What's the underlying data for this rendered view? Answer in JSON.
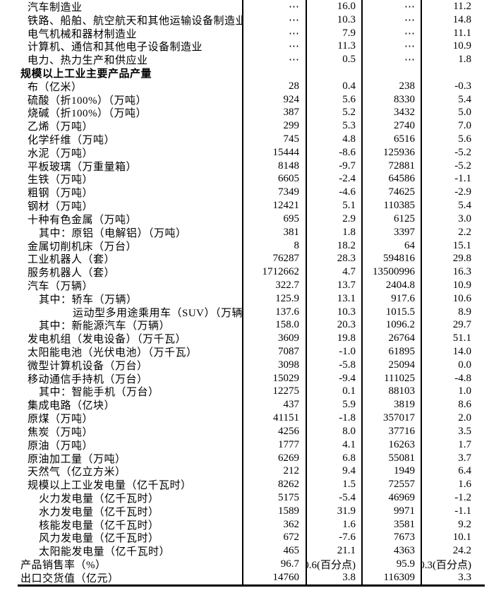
{
  "table": {
    "rows": [
      {
        "label": "汽车制造业",
        "indent": 1,
        "bold": false,
        "v1": "⋯",
        "v2": "16.0",
        "v3": "⋯",
        "v4": "11.2"
      },
      {
        "label": "铁路、船舶、航空航天和其他运输设备制造业",
        "indent": 1,
        "bold": false,
        "v1": "⋯",
        "v2": "10.3",
        "v3": "⋯",
        "v4": "14.8"
      },
      {
        "label": "电气机械和器材制造业",
        "indent": 1,
        "bold": false,
        "v1": "⋯",
        "v2": "7.9",
        "v3": "⋯",
        "v4": "11.1"
      },
      {
        "label": "计算机、通信和其他电子设备制造业",
        "indent": 1,
        "bold": false,
        "v1": "⋯",
        "v2": "11.3",
        "v3": "⋯",
        "v4": "10.9"
      },
      {
        "label": "电力、热力生产和供应业",
        "indent": 1,
        "bold": false,
        "v1": "⋯",
        "v2": "0.5",
        "v3": "⋯",
        "v4": "1.8"
      },
      {
        "label": "规模以上工业主要产品产量",
        "indent": 0,
        "bold": true,
        "v1": "",
        "v2": "",
        "v3": "",
        "v4": ""
      },
      {
        "label": "布（亿米）",
        "indent": 1,
        "bold": false,
        "v1": "28",
        "v2": "0.4",
        "v3": "238",
        "v4": "-0.3"
      },
      {
        "label": "硫酸（折100%）（万吨）",
        "indent": 1,
        "bold": false,
        "v1": "924",
        "v2": "5.6",
        "v3": "8330",
        "v4": "5.4"
      },
      {
        "label": "烧碱（折100%）（万吨）",
        "indent": 1,
        "bold": false,
        "v1": "387",
        "v2": "5.2",
        "v3": "3432",
        "v4": "5.0"
      },
      {
        "label": "乙烯（万吨）",
        "indent": 1,
        "bold": false,
        "v1": "299",
        "v2": "5.3",
        "v3": "2740",
        "v4": "7.0"
      },
      {
        "label": "化学纤维（万吨）",
        "indent": 1,
        "bold": false,
        "v1": "745",
        "v2": "4.8",
        "v3": "6516",
        "v4": "5.6"
      },
      {
        "label": "水泥（万吨）",
        "indent": 1,
        "bold": false,
        "v1": "15444",
        "v2": "-8.6",
        "v3": "125936",
        "v4": "-5.2"
      },
      {
        "label": "平板玻璃（万重量箱）",
        "indent": 1,
        "bold": false,
        "v1": "8148",
        "v2": "-9.7",
        "v3": "72881",
        "v4": "-5.2"
      },
      {
        "label": "生铁（万吨）",
        "indent": 1,
        "bold": false,
        "v1": "6605",
        "v2": "-2.4",
        "v3": "64586",
        "v4": "-1.1"
      },
      {
        "label": "粗钢（万吨）",
        "indent": 1,
        "bold": false,
        "v1": "7349",
        "v2": "-4.6",
        "v3": "74625",
        "v4": "-2.9"
      },
      {
        "label": "钢材（万吨）",
        "indent": 1,
        "bold": false,
        "v1": "12421",
        "v2": "5.1",
        "v3": "110385",
        "v4": "5.4"
      },
      {
        "label": "十种有色金属（万吨）",
        "indent": 1,
        "bold": false,
        "v1": "695",
        "v2": "2.9",
        "v3": "6125",
        "v4": "3.0"
      },
      {
        "label": "其中：原铝（电解铝）（万吨）",
        "indent": 2,
        "bold": false,
        "v1": "381",
        "v2": "1.8",
        "v3": "3397",
        "v4": "2.2"
      },
      {
        "label": "金属切削机床（万台）",
        "indent": 1,
        "bold": false,
        "v1": "8",
        "v2": "18.2",
        "v3": "64",
        "v4": "15.1"
      },
      {
        "label": "工业机器人（套）",
        "indent": 1,
        "bold": false,
        "v1": "76287",
        "v2": "28.3",
        "v3": "594816",
        "v4": "29.8"
      },
      {
        "label": "服务机器人（套）",
        "indent": 1,
        "bold": false,
        "v1": "1712662",
        "v2": "4.7",
        "v3": "13500996",
        "v4": "16.3"
      },
      {
        "label": "汽车（万辆）",
        "indent": 1,
        "bold": false,
        "v1": "322.7",
        "v2": "13.7",
        "v3": "2404.8",
        "v4": "10.9"
      },
      {
        "label": "其中：轿车（万辆）",
        "indent": 2,
        "bold": false,
        "v1": "125.9",
        "v2": "13.1",
        "v3": "917.6",
        "v4": "10.6"
      },
      {
        "label": "运动型多用途乘用车（SUV）（万辆）",
        "indent": 3,
        "bold": false,
        "v1": "137.6",
        "v2": "10.3",
        "v3": "1015.5",
        "v4": "8.9"
      },
      {
        "label": "其中：新能源汽车（万辆）",
        "indent": 2,
        "bold": false,
        "v1": "158.0",
        "v2": "20.3",
        "v3": "1096.2",
        "v4": "29.7"
      },
      {
        "label": "发电机组（发电设备）（万千瓦）",
        "indent": 1,
        "bold": false,
        "v1": "3609",
        "v2": "19.8",
        "v3": "26764",
        "v4": "51.1"
      },
      {
        "label": "太阳能电池（光伏电池）（万千瓦）",
        "indent": 1,
        "bold": false,
        "v1": "7087",
        "v2": "-1.0",
        "v3": "61895",
        "v4": "14.0"
      },
      {
        "label": "微型计算机设备（万台）",
        "indent": 1,
        "bold": false,
        "v1": "3098",
        "v2": "-5.8",
        "v3": "25094",
        "v4": "0.0"
      },
      {
        "label": "移动通信手持机（万台）",
        "indent": 1,
        "bold": false,
        "v1": "15029",
        "v2": "-9.4",
        "v3": "111025",
        "v4": "-4.8"
      },
      {
        "label": "其中：智能手机（万台）",
        "indent": 2,
        "bold": false,
        "v1": "12275",
        "v2": "0.1",
        "v3": "88103",
        "v4": "1.0"
      },
      {
        "label": "集成电路（亿块）",
        "indent": 1,
        "bold": false,
        "v1": "437",
        "v2": "5.9",
        "v3": "3819",
        "v4": "8.6"
      },
      {
        "label": "原煤（万吨）",
        "indent": 1,
        "bold": false,
        "v1": "41151",
        "v2": "-1.8",
        "v3": "357017",
        "v4": "2.0"
      },
      {
        "label": "焦炭（万吨）",
        "indent": 1,
        "bold": false,
        "v1": "4256",
        "v2": "8.0",
        "v3": "37716",
        "v4": "3.5"
      },
      {
        "label": "原油（万吨）",
        "indent": 1,
        "bold": false,
        "v1": "1777",
        "v2": "4.1",
        "v3": "16263",
        "v4": "1.7"
      },
      {
        "label": "原油加工量（万吨）",
        "indent": 1,
        "bold": false,
        "v1": "6269",
        "v2": "6.8",
        "v3": "55081",
        "v4": "3.7"
      },
      {
        "label": "天然气（亿立方米）",
        "indent": 1,
        "bold": false,
        "v1": "212",
        "v2": "9.4",
        "v3": "1949",
        "v4": "6.4"
      },
      {
        "label": "规模以上工业发电量（亿千瓦时）",
        "indent": 1,
        "bold": false,
        "v1": "8262",
        "v2": "1.5",
        "v3": "72557",
        "v4": "1.6"
      },
      {
        "label": "火力发电量（亿千瓦时）",
        "indent": 2,
        "bold": false,
        "v1": "5175",
        "v2": "-5.4",
        "v3": "46969",
        "v4": "-1.2"
      },
      {
        "label": "水力发电量（亿千瓦时）",
        "indent": 2,
        "bold": false,
        "v1": "1589",
        "v2": "31.9",
        "v3": "9971",
        "v4": "-1.1"
      },
      {
        "label": "核能发电量（亿千瓦时）",
        "indent": 2,
        "bold": false,
        "v1": "362",
        "v2": "1.6",
        "v3": "3581",
        "v4": "9.2"
      },
      {
        "label": "风力发电量（亿千瓦时）",
        "indent": 2,
        "bold": false,
        "v1": "672",
        "v2": "-7.6",
        "v3": "7673",
        "v4": "10.1"
      },
      {
        "label": "太阳能发电量（亿千瓦时）",
        "indent": 2,
        "bold": false,
        "v1": "465",
        "v2": "21.1",
        "v3": "4363",
        "v4": "24.2"
      },
      {
        "label": "产品销售率（%）",
        "indent": 0,
        "bold": false,
        "v1": "96.7",
        "v2": "0.6(百分点)",
        "v3": "95.9",
        "v4": "-0.3(百分点)"
      },
      {
        "label": "出口交货值（亿元）",
        "indent": 0,
        "bold": false,
        "v1": "14760",
        "v2": "3.8",
        "v3": "116309",
        "v4": "3.3"
      }
    ]
  },
  "colors": {
    "text": "#000000",
    "rule": "#000000",
    "background": "#ffffff"
  }
}
